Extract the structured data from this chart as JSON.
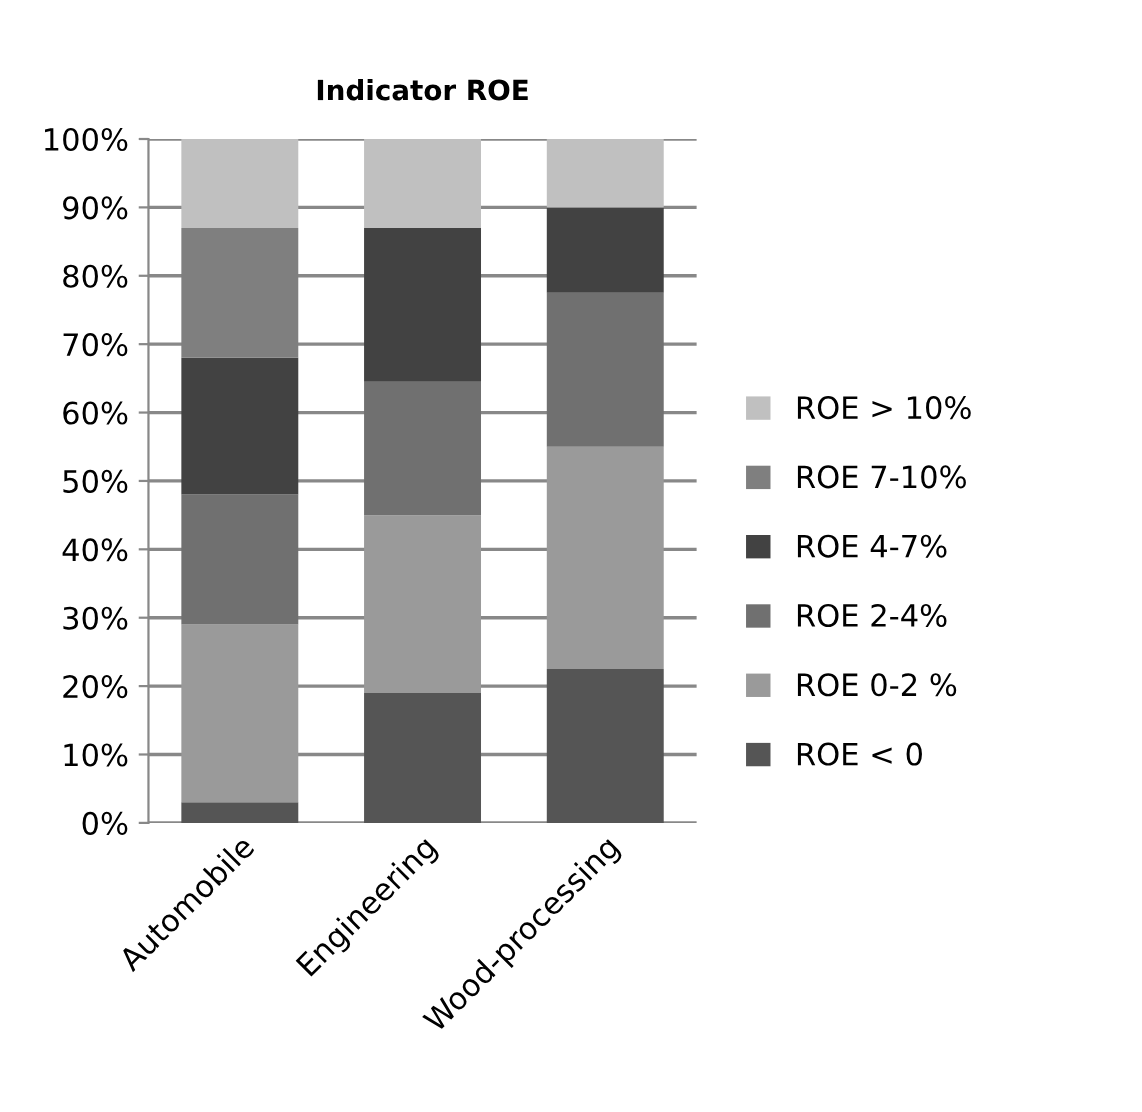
{
  "chart_data": {
    "type": "bar",
    "title": "Indicator ROE",
    "stacked": true,
    "categories": [
      "Automobile",
      "Engineering",
      "Wood-processing"
    ],
    "series": [
      {
        "name": "ROE < 0",
        "color": "#555555",
        "values": [
          3,
          19,
          22.5
        ]
      },
      {
        "name": "ROE 0-2 %",
        "color": "#9a9a9a",
        "values": [
          26,
          26,
          32.5
        ]
      },
      {
        "name": "ROE 2-4%",
        "color": "#707070",
        "values": [
          19,
          19.5,
          22.5
        ]
      },
      {
        "name": "ROE 4-7%",
        "color": "#424242",
        "values": [
          20,
          22.5,
          12.5
        ]
      },
      {
        "name": "ROE 7-10%",
        "color": "#7f7f7f",
        "values": [
          19,
          0,
          0
        ]
      },
      {
        "name": "ROE > 10%",
        "color": "#c0c0c0",
        "values": [
          13,
          13,
          10
        ]
      }
    ],
    "ylim": [
      0,
      100
    ],
    "yticks": [
      {
        "value": 0,
        "label": "0%"
      },
      {
        "value": 10,
        "label": "10%"
      },
      {
        "value": 20,
        "label": "20%"
      },
      {
        "value": 30,
        "label": "30%"
      },
      {
        "value": 40,
        "label": "40%"
      },
      {
        "value": 50,
        "label": "50%"
      },
      {
        "value": 60,
        "label": "60%"
      },
      {
        "value": 70,
        "label": "70%"
      },
      {
        "value": 80,
        "label": "80%"
      },
      {
        "value": 90,
        "label": "90%"
      },
      {
        "value": 100,
        "label": "100%"
      }
    ],
    "grid": "y",
    "legend": "right"
  }
}
